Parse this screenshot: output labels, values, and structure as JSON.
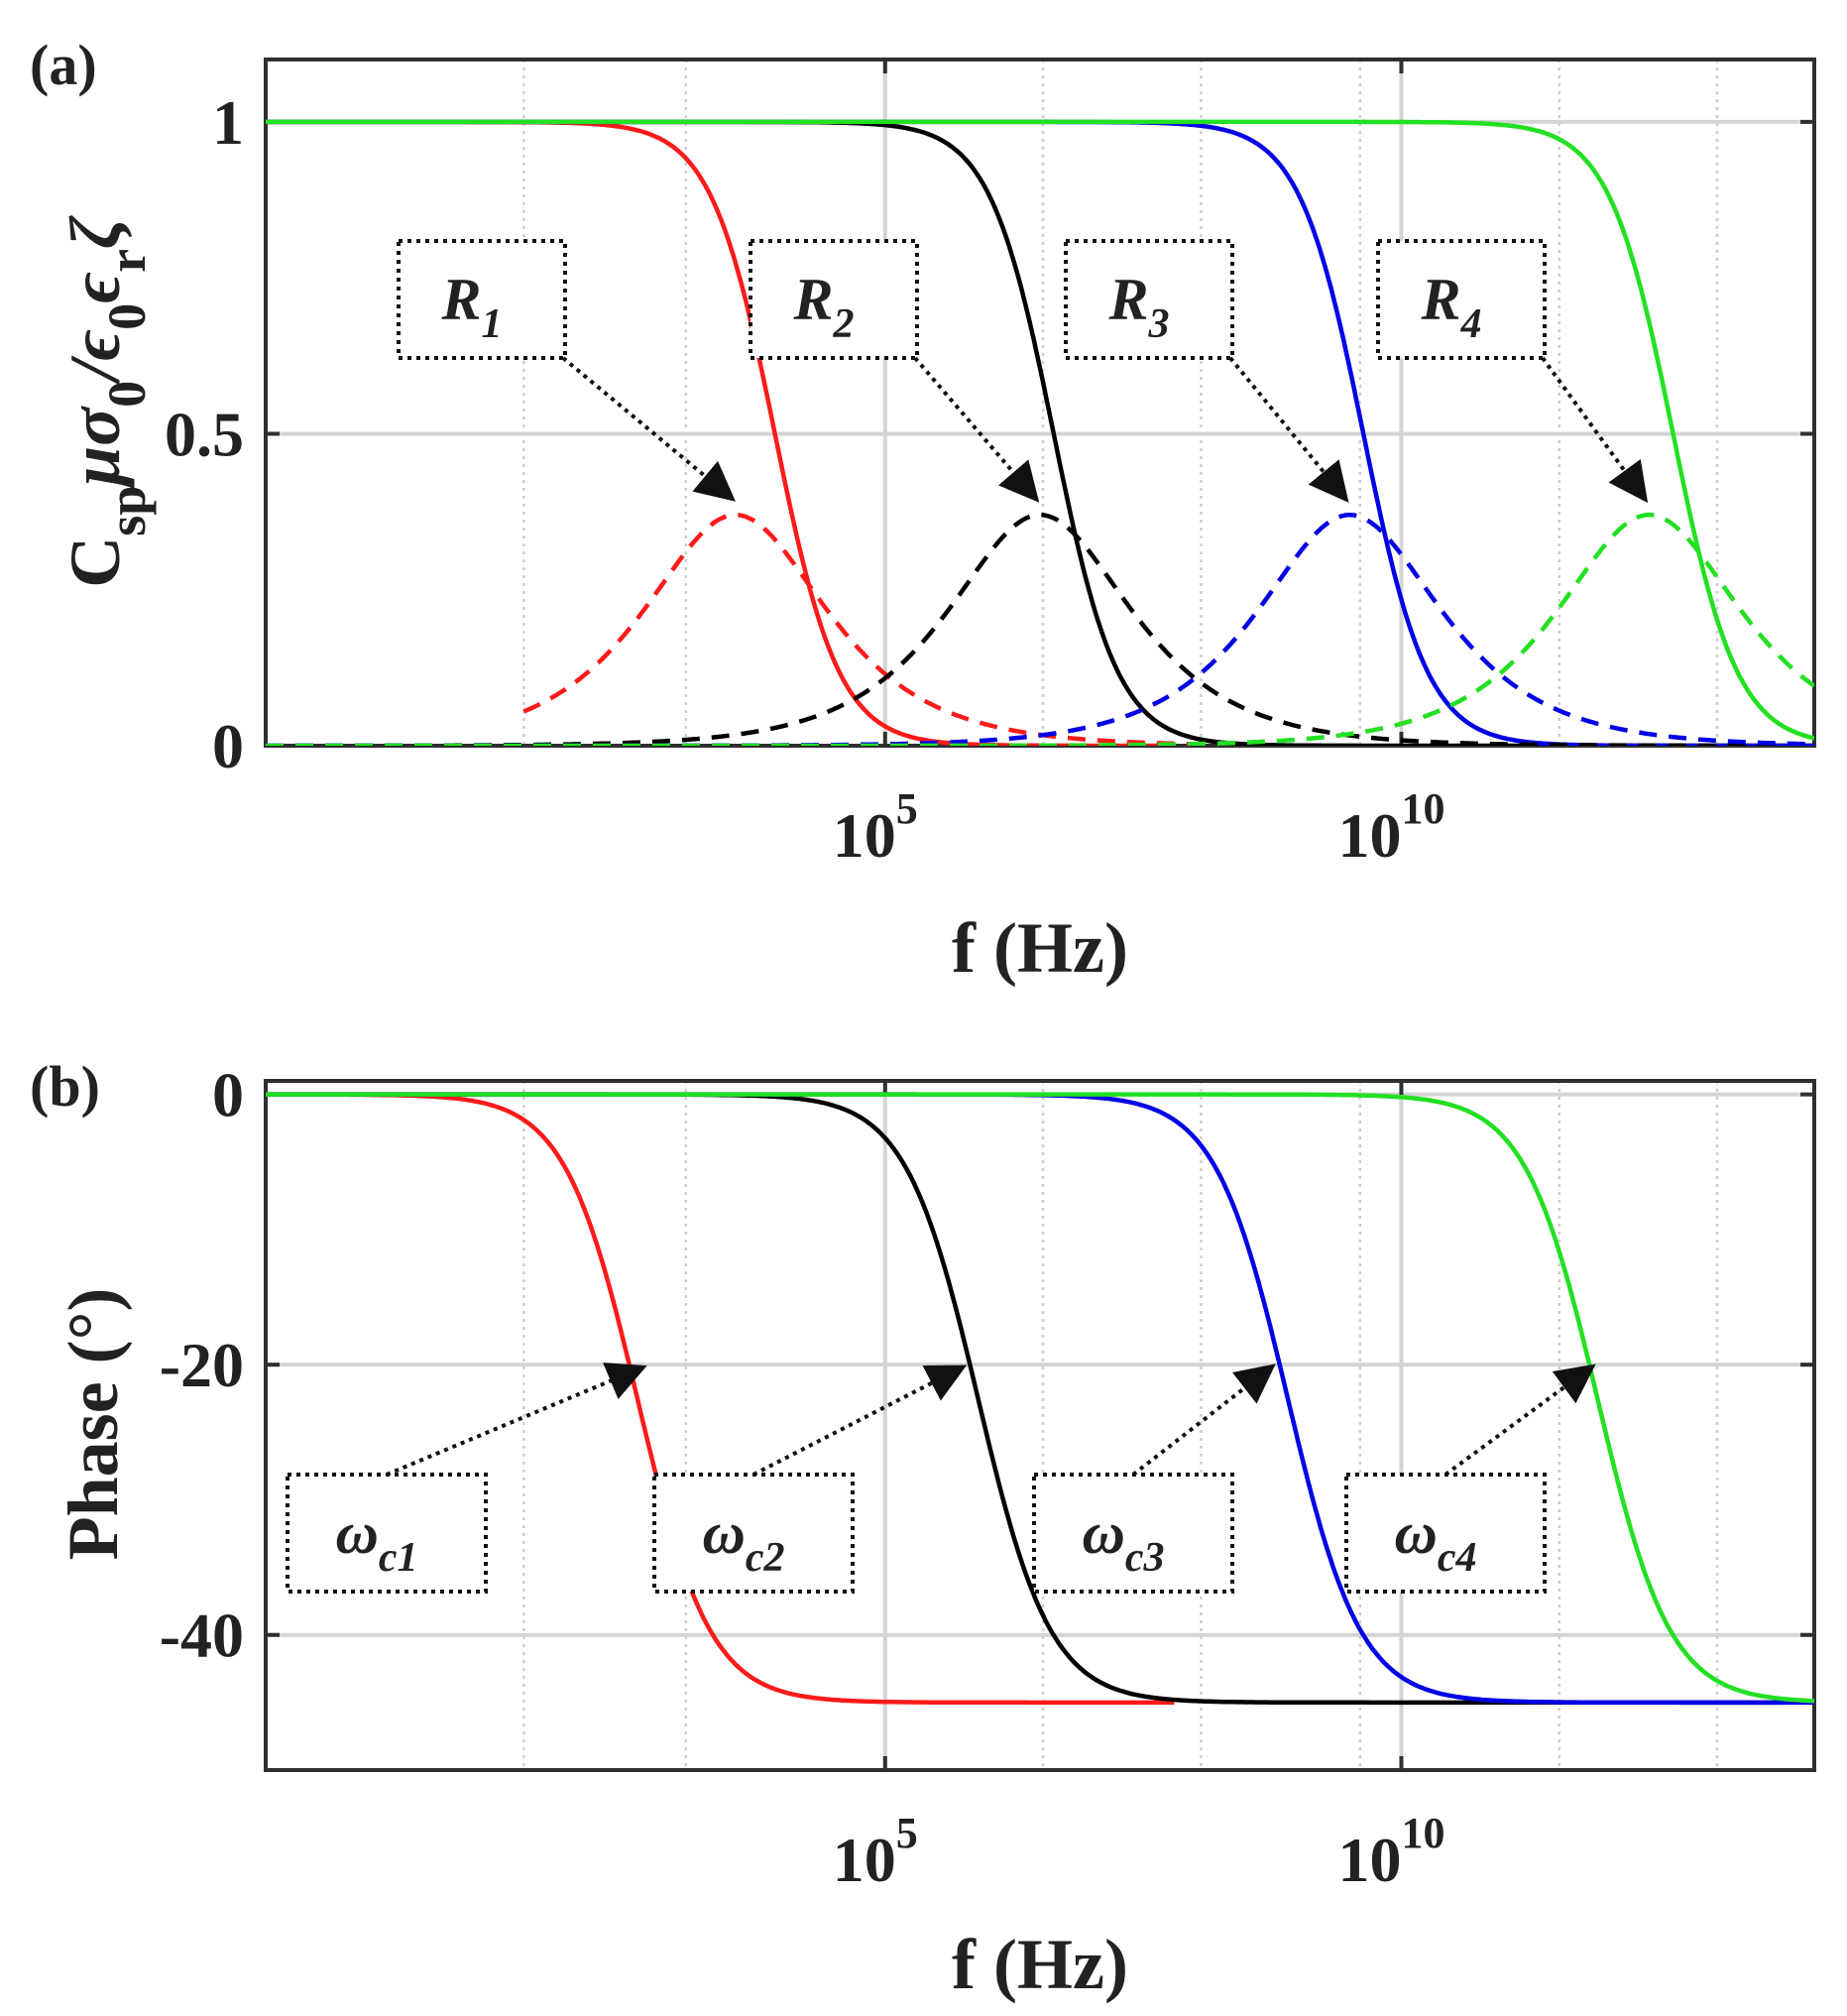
{
  "chart_data": [
    {
      "panel_label": "(a)",
      "type": "line",
      "xscale": "log",
      "xlabel": "f (Hz)",
      "ylabel": "C_sp μσ_0/ε_0 ε_r ζ",
      "xlim_log10": [
        -1,
        14
      ],
      "ylim": [
        0,
        1.1
      ],
      "xticks": [
        {
          "base": "10",
          "exp": "5"
        },
        {
          "base": "10",
          "exp": "10"
        }
      ],
      "yticks": [
        "0",
        "0.5",
        "1"
      ],
      "grid": true,
      "series": [
        {
          "name": "R1 real",
          "style": "solid",
          "color": "#ff1a1a",
          "fc_log10": 3.9,
          "kind": "real",
          "xmax_log10": 7.8
        },
        {
          "name": "R2 real",
          "style": "solid",
          "color": "#000000",
          "fc_log10": 6.6,
          "kind": "real",
          "xmax_log10": 14
        },
        {
          "name": "R3 real",
          "style": "solid",
          "color": "#0000e6",
          "fc_log10": 9.6,
          "kind": "real",
          "xmax_log10": 14
        },
        {
          "name": "R4 real",
          "style": "solid",
          "color": "#22e022",
          "fc_log10": 12.6,
          "kind": "real",
          "xmax_log10": 14
        },
        {
          "name": "R1 imag",
          "style": "dashed",
          "color": "#ff1a1a",
          "peak_log10": 3.55,
          "peak": 0.37,
          "kind": "imag",
          "xmin_log10": 1.5,
          "xmax_log10": 8
        },
        {
          "name": "R2 imag",
          "style": "dashed",
          "color": "#000000",
          "peak_log10": 6.5,
          "peak": 0.37,
          "kind": "imag",
          "xmin_log10": -1,
          "xmax_log10": 14
        },
        {
          "name": "R3 imag",
          "style": "dashed",
          "color": "#0000e6",
          "peak_log10": 9.5,
          "peak": 0.37,
          "kind": "imag",
          "xmin_log10": -1,
          "xmax_log10": 14
        },
        {
          "name": "R4 imag",
          "style": "dashed",
          "color": "#22e022",
          "peak_log10": 12.4,
          "peak": 0.37,
          "kind": "imag",
          "xmin_log10": -1,
          "xmax_log10": 14
        }
      ],
      "annotations": [
        {
          "main": "R",
          "sub": "1",
          "target_log10": 3.55,
          "target_y": 0.39
        },
        {
          "main": "R",
          "sub": "2",
          "target_log10": 6.5,
          "target_y": 0.39
        },
        {
          "main": "R",
          "sub": "3",
          "target_log10": 9.5,
          "target_y": 0.39
        },
        {
          "main": "R",
          "sub": "4",
          "target_log10": 12.4,
          "target_y": 0.39
        }
      ]
    },
    {
      "panel_label": "(b)",
      "type": "line",
      "xscale": "log",
      "xlabel": "f (Hz)",
      "ylabel": "Phase (°)",
      "xlim_log10": [
        -1,
        14
      ],
      "ylim": [
        -50,
        1
      ],
      "xticks": [
        {
          "base": "10",
          "exp": "5"
        },
        {
          "base": "10",
          "exp": "10"
        }
      ],
      "yticks": [
        "0",
        "-20",
        "-40"
      ],
      "grid": true,
      "series": [
        {
          "name": "R1 phase",
          "style": "solid",
          "color": "#ff1a1a",
          "fc_log10": 2.6,
          "xmin_log10": -1,
          "xmax_log10": 7.8
        },
        {
          "name": "R2 phase",
          "style": "solid",
          "color": "#000000",
          "fc_log10": 5.9,
          "xmin_log10": -1,
          "xmax_log10": 13.7
        },
        {
          "name": "R3 phase",
          "style": "solid",
          "color": "#0000e6",
          "fc_log10": 8.9,
          "xmin_log10": -1,
          "xmax_log10": 14
        },
        {
          "name": "R4 phase",
          "style": "solid",
          "color": "#22e022",
          "fc_log10": 11.9,
          "xmin_log10": -1,
          "xmax_log10": 14
        }
      ],
      "annotations": [
        {
          "main": "ω",
          "sub": "c1",
          "target_log10": 2.7,
          "target_y": -20
        },
        {
          "main": "ω",
          "sub": "c2",
          "target_log10": 5.8,
          "target_y": -20
        },
        {
          "main": "ω",
          "sub": "c3",
          "target_log10": 8.8,
          "target_y": -20
        },
        {
          "main": "ω",
          "sub": "c4",
          "target_log10": 11.9,
          "target_y": -20
        }
      ]
    }
  ]
}
